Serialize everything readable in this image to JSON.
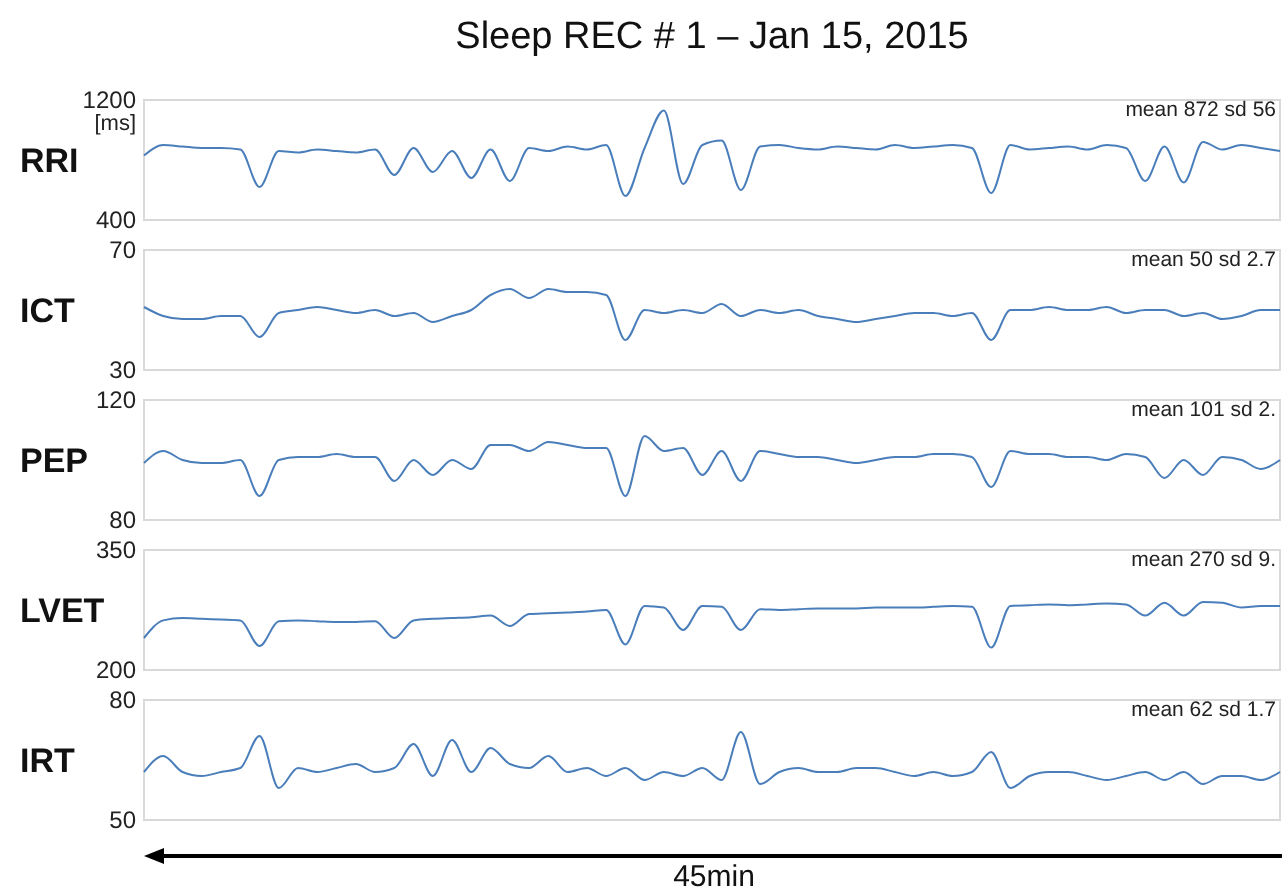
{
  "chart_data": [
    {
      "type": "line",
      "title": "Sleep REC # 1 – Jan 15, 2015",
      "ylabel": "RRI",
      "annotations": [
        "[ms]",
        "mean 872 sd 56"
      ],
      "categories": [
        null,
        null,
        null,
        null,
        null,
        null,
        null,
        null,
        null,
        null,
        null,
        null,
        null,
        null,
        null,
        null,
        null,
        null,
        null,
        null,
        null,
        null,
        null,
        null,
        null,
        null,
        null,
        null,
        null,
        null,
        null,
        null,
        null,
        null,
        null,
        null,
        null,
        null,
        null,
        null,
        null,
        null,
        null,
        null,
        null,
        null,
        null,
        null,
        null,
        null,
        null,
        null,
        null,
        null,
        null,
        null,
        null,
        null,
        null,
        null
      ],
      "series": [
        {
          "color": "#4a7ebb",
          "values": [
            830,
            900,
            890,
            880,
            880,
            870,
            620,
            860,
            850,
            870,
            860,
            850,
            870,
            700,
            880,
            720,
            860,
            680,
            870,
            660,
            880,
            860,
            890,
            870,
            900,
            560,
            880,
            1130,
            640,
            900,
            930,
            600,
            890,
            900,
            880,
            870,
            890,
            880,
            870,
            900,
            880,
            890,
            900,
            880,
            580,
            900,
            870,
            880,
            890,
            870,
            900,
            880,
            660,
            890,
            650,
            920,
            870,
            900,
            880,
            860
          ]
        }
      ],
      "ylim": [
        400,
        1200
      ],
      "yticks": [
        400,
        1200
      ],
      "tick_labels": "y"
    },
    {
      "type": "line",
      "ylabel": "ICT",
      "annotations": [
        "mean 50 sd 2.7"
      ],
      "categories": [
        null,
        null,
        null,
        null,
        null,
        null,
        null,
        null,
        null,
        null,
        null,
        null,
        null,
        null,
        null,
        null,
        null,
        null,
        null,
        null,
        null,
        null,
        null,
        null,
        null,
        null,
        null,
        null,
        null,
        null,
        null,
        null,
        null,
        null,
        null,
        null,
        null,
        null,
        null,
        null,
        null,
        null,
        null,
        null,
        null,
        null,
        null,
        null,
        null,
        null,
        null,
        null,
        null,
        null,
        null,
        null,
        null,
        null,
        null,
        null
      ],
      "series": [
        {
          "color": "#4a7ebb",
          "values": [
            51,
            48,
            47,
            47,
            48,
            48,
            41,
            49,
            50,
            51,
            50,
            49,
            50,
            48,
            49,
            46,
            48,
            50,
            55,
            57,
            54,
            57,
            56,
            56,
            55,
            40,
            50,
            49,
            50,
            49,
            52,
            48,
            50,
            49,
            50,
            48,
            47,
            46,
            47,
            48,
            49,
            49,
            48,
            49,
            40,
            50,
            50,
            51,
            50,
            50,
            51,
            49,
            50,
            50,
            48,
            49,
            47,
            48,
            50,
            50
          ]
        }
      ],
      "ylim": [
        30,
        70
      ],
      "yticks": [
        30,
        70
      ],
      "tick_labels": "y"
    },
    {
      "type": "line",
      "ylabel": "PEP",
      "annotations": [
        "mean 101 sd 2."
      ],
      "categories": [
        null,
        null,
        null,
        null,
        null,
        null,
        null,
        null,
        null,
        null,
        null,
        null,
        null,
        null,
        null,
        null,
        null,
        null,
        null,
        null,
        null,
        null,
        null,
        null,
        null,
        null,
        null,
        null,
        null,
        null,
        null,
        null,
        null,
        null,
        null,
        null,
        null,
        null,
        null,
        null,
        null,
        null,
        null,
        null,
        null,
        null,
        null,
        null,
        null,
        null,
        null,
        null,
        null,
        null,
        null,
        null,
        null,
        null,
        null,
        null
      ],
      "series": [
        {
          "color": "#4a7ebb",
          "values": [
            99,
            103,
            100,
            99,
            99,
            100,
            88,
            100,
            101,
            101,
            102,
            101,
            101,
            93,
            100,
            95,
            100,
            97,
            105,
            105,
            103,
            106,
            105,
            104,
            104,
            88,
            108,
            103,
            104,
            95,
            103,
            93,
            103,
            102,
            101,
            101,
            100,
            99,
            100,
            101,
            101,
            102,
            102,
            101,
            91,
            103,
            102,
            102,
            101,
            101,
            100,
            102,
            101,
            94,
            100,
            95,
            101,
            100,
            97,
            100
          ]
        }
      ],
      "ylim": [
        80,
        120
      ],
      "yticks": [
        80,
        120
      ],
      "tick_labels": "y"
    },
    {
      "type": "line",
      "ylabel": "LVET",
      "annotations": [
        "mean 270 sd 9."
      ],
      "categories": [
        null,
        null,
        null,
        null,
        null,
        null,
        null,
        null,
        null,
        null,
        null,
        null,
        null,
        null,
        null,
        null,
        null,
        null,
        null,
        null,
        null,
        null,
        null,
        null,
        null,
        null,
        null,
        null,
        null,
        null,
        null,
        null,
        null,
        null,
        null,
        null,
        null,
        null,
        null,
        null,
        null,
        null,
        null,
        null,
        null,
        null,
        null,
        null,
        null,
        null,
        null,
        null,
        null,
        null,
        null,
        null,
        null,
        null,
        null,
        null
      ],
      "series": [
        {
          "color": "#4a7ebb",
          "values": [
            240,
            262,
            265,
            264,
            263,
            262,
            230,
            261,
            262,
            261,
            260,
            260,
            261,
            240,
            262,
            264,
            265,
            266,
            268,
            255,
            270,
            271,
            272,
            273,
            275,
            232,
            280,
            278,
            250,
            280,
            279,
            250,
            276,
            275,
            276,
            277,
            277,
            277,
            278,
            278,
            278,
            279,
            280,
            279,
            228,
            280,
            281,
            282,
            281,
            282,
            283,
            282,
            268,
            284,
            268,
            285,
            284,
            278,
            280,
            280
          ]
        }
      ],
      "ylim": [
        200,
        350
      ],
      "yticks": [
        200,
        350
      ],
      "tick_labels": "y"
    },
    {
      "type": "line",
      "ylabel": "IRT",
      "annotations": [
        "mean 62 sd 1.7",
        "45min"
      ],
      "categories": [
        null,
        null,
        null,
        null,
        null,
        null,
        null,
        null,
        null,
        null,
        null,
        null,
        null,
        null,
        null,
        null,
        null,
        null,
        null,
        null,
        null,
        null,
        null,
        null,
        null,
        null,
        null,
        null,
        null,
        null,
        null,
        null,
        null,
        null,
        null,
        null,
        null,
        null,
        null,
        null,
        null,
        null,
        null,
        null,
        null,
        null,
        null,
        null,
        null,
        null,
        null,
        null,
        null,
        null,
        null,
        null,
        null,
        null,
        null,
        null
      ],
      "series": [
        {
          "color": "#4a7ebb",
          "values": [
            62,
            66,
            62,
            61,
            62,
            63,
            71,
            58,
            63,
            62,
            63,
            64,
            62,
            63,
            69,
            61,
            70,
            62,
            68,
            64,
            63,
            66,
            62,
            63,
            61,
            63,
            60,
            62,
            61,
            63,
            60,
            72,
            59,
            62,
            63,
            62,
            62,
            63,
            63,
            62,
            61,
            62,
            61,
            62,
            67,
            58,
            61,
            62,
            62,
            61,
            60,
            61,
            62,
            60,
            62,
            59,
            61,
            61,
            60,
            62
          ]
        }
      ],
      "ylim": [
        50,
        80
      ],
      "yticks": [
        50,
        80
      ],
      "tick_labels": "y"
    }
  ]
}
